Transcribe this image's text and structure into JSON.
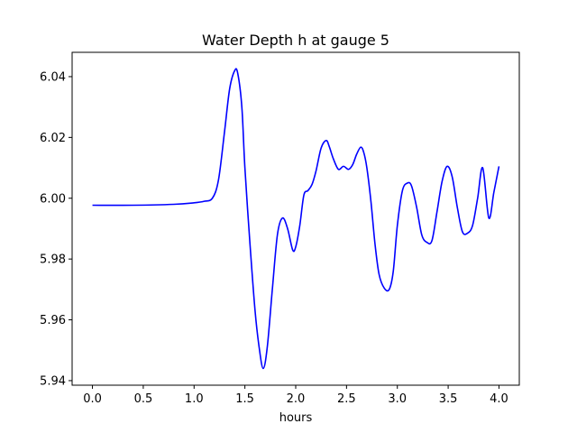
{
  "chart_data": {
    "type": "line",
    "title": "Water Depth h at gauge 5",
    "xlabel": "hours",
    "ylabel": "",
    "xlim": [
      -0.2,
      4.2
    ],
    "ylim": [
      5.9385,
      6.048
    ],
    "grid": false,
    "x_ticks": [
      0.0,
      0.5,
      1.0,
      1.5,
      2.0,
      2.5,
      3.0,
      3.5,
      4.0
    ],
    "x_tick_labels": [
      "0.0",
      "0.5",
      "1.0",
      "1.5",
      "2.0",
      "2.5",
      "3.0",
      "3.5",
      "4.0"
    ],
    "y_ticks": [
      5.94,
      5.96,
      5.98,
      6.0,
      6.02,
      6.04
    ],
    "y_tick_labels": [
      "5.94",
      "5.96",
      "5.98",
      "6.00",
      "6.02",
      "6.04"
    ],
    "series": [
      {
        "color": "#0000ff",
        "x": [
          0.0,
          0.4,
          0.8,
          1.0,
          1.1,
          1.18,
          1.24,
          1.3,
          1.35,
          1.4,
          1.43,
          1.47,
          1.5,
          1.55,
          1.6,
          1.64,
          1.68,
          1.72,
          1.77,
          1.82,
          1.87,
          1.92,
          1.97,
          2.0,
          2.04,
          2.08,
          2.12,
          2.16,
          2.2,
          2.25,
          2.3,
          2.33,
          2.37,
          2.42,
          2.47,
          2.52,
          2.56,
          2.6,
          2.64,
          2.67,
          2.7,
          2.74,
          2.78,
          2.82,
          2.87,
          2.92,
          2.96,
          3.0,
          3.05,
          3.1,
          3.14,
          3.19,
          3.24,
          3.29,
          3.34,
          3.39,
          3.44,
          3.49,
          3.54,
          3.59,
          3.64,
          3.69,
          3.74,
          3.79,
          3.84,
          3.9,
          3.95,
          4.0
        ],
        "y": [
          5.9977,
          5.9977,
          5.998,
          5.9985,
          5.999,
          6.0,
          6.006,
          6.022,
          6.036,
          6.042,
          6.041,
          6.03,
          6.01,
          5.985,
          5.963,
          5.951,
          5.944,
          5.951,
          5.97,
          5.988,
          5.9935,
          5.99,
          5.983,
          5.984,
          5.991,
          6.001,
          6.0025,
          6.0045,
          6.009,
          6.0165,
          6.019,
          6.017,
          6.013,
          6.0095,
          6.0105,
          6.0095,
          6.011,
          6.0145,
          6.0168,
          6.015,
          6.01,
          5.999,
          5.985,
          5.975,
          5.9705,
          5.97,
          5.976,
          5.991,
          6.0025,
          6.005,
          6.004,
          5.997,
          5.988,
          5.9855,
          5.986,
          5.9955,
          6.0055,
          6.0105,
          6.007,
          5.997,
          5.989,
          5.9885,
          5.991,
          6.0,
          6.01,
          5.9935,
          6.002,
          6.0105
        ]
      }
    ]
  }
}
